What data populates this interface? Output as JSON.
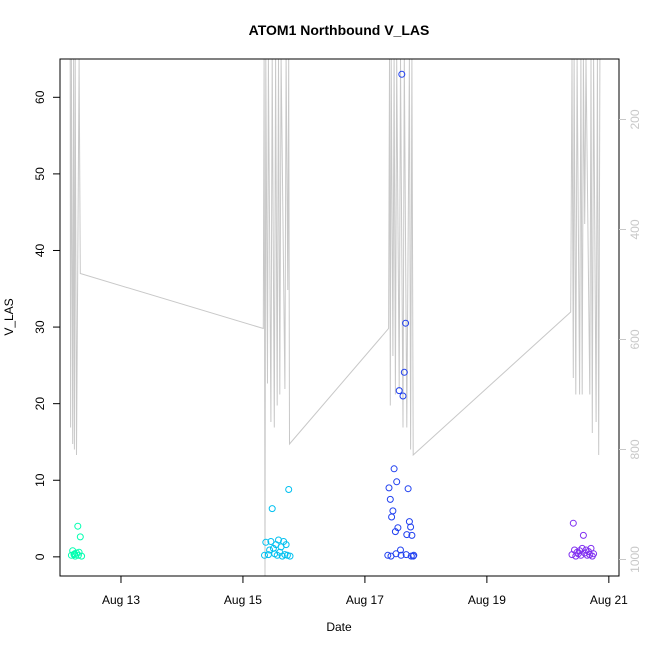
{
  "chart_data": {
    "type": "scatter",
    "title": "ATOM1 Northbound V_LAS",
    "xlabel": "Date",
    "ylabel": "V_LAS",
    "x_ticks": [
      "Aug 13",
      "Aug 15",
      "Aug 17",
      "Aug 19",
      "Aug 21"
    ],
    "y_ticks": [
      "0",
      "10",
      "20",
      "30",
      "40",
      "50",
      "60"
    ],
    "y2_ticks": [
      "200",
      "400",
      "600",
      "800",
      "1000"
    ],
    "xlim": [
      "2012-08-12T00:00",
      "2012-08-21T04:00"
    ],
    "ylim": [
      -2.5,
      65
    ],
    "y2lim": [
      1030,
      90
    ],
    "y2_reversed": true,
    "grid": false,
    "series": [
      {
        "color": "#00ffb0",
        "points": [
          [
            "2012-08-12T04:30",
            0.2
          ],
          [
            "2012-08-12T05:00",
            0.8
          ],
          [
            "2012-08-12T05:30",
            0.3
          ],
          [
            "2012-08-12T06:00",
            0.1
          ],
          [
            "2012-08-12T06:30",
            0.5
          ],
          [
            "2012-08-12T07:00",
            4.0
          ],
          [
            "2012-08-12T07:30",
            0.6
          ],
          [
            "2012-08-12T08:00",
            2.6
          ],
          [
            "2012-08-12T08:30",
            0.1
          ],
          [
            "2012-08-12T05:45",
            0.4
          ],
          [
            "2012-08-12T07:15",
            0.2
          ]
        ]
      },
      {
        "color": "#00c0f0",
        "points": [
          [
            "2012-08-15T08:30",
            0.2
          ],
          [
            "2012-08-15T09:00",
            1.9
          ],
          [
            "2012-08-15T10:00",
            0.3
          ],
          [
            "2012-08-15T10:30",
            0.9
          ],
          [
            "2012-08-15T11:00",
            2.0
          ],
          [
            "2012-08-15T11:30",
            6.3
          ],
          [
            "2012-08-15T12:00",
            1.1
          ],
          [
            "2012-08-15T12:30",
            0.4
          ],
          [
            "2012-08-15T13:00",
            1.6
          ],
          [
            "2012-08-15T13:30",
            0.2
          ],
          [
            "2012-08-15T14:00",
            2.2
          ],
          [
            "2012-08-15T14:30",
            0.6
          ],
          [
            "2012-08-15T15:00",
            1.3
          ],
          [
            "2012-08-15T15:30",
            0.1
          ],
          [
            "2012-08-15T16:00",
            2.0
          ],
          [
            "2012-08-15T16:30",
            0.3
          ],
          [
            "2012-08-15T17:00",
            1.6
          ],
          [
            "2012-08-15T17:30",
            0.2
          ],
          [
            "2012-08-15T18:00",
            8.8
          ],
          [
            "2012-08-15T18:30",
            0.1
          ]
        ]
      },
      {
        "color": "#2040f0",
        "points": [
          [
            "2012-08-17T09:00",
            0.2
          ],
          [
            "2012-08-17T09:30",
            9.0
          ],
          [
            "2012-08-17T10:00",
            7.5
          ],
          [
            "2012-08-17T10:30",
            5.2
          ],
          [
            "2012-08-17T11:00",
            6.0
          ],
          [
            "2012-08-17T11:30",
            11.5
          ],
          [
            "2012-08-17T12:00",
            3.3
          ],
          [
            "2012-08-17T12:30",
            9.8
          ],
          [
            "2012-08-17T13:00",
            3.8
          ],
          [
            "2012-08-17T13:30",
            21.7
          ],
          [
            "2012-08-17T14:00",
            0.9
          ],
          [
            "2012-08-17T14:30",
            63.0
          ],
          [
            "2012-08-17T15:00",
            21.0
          ],
          [
            "2012-08-17T15:30",
            24.1
          ],
          [
            "2012-08-17T16:00",
            30.5
          ],
          [
            "2012-08-17T16:30",
            2.9
          ],
          [
            "2012-08-17T17:00",
            8.9
          ],
          [
            "2012-08-17T17:30",
            4.6
          ],
          [
            "2012-08-17T18:00",
            3.9
          ],
          [
            "2012-08-17T18:30",
            2.8
          ],
          [
            "2012-08-17T19:00",
            0.1
          ],
          [
            "2012-08-17T10:15",
            0.1
          ],
          [
            "2012-08-17T12:15",
            0.4
          ],
          [
            "2012-08-17T14:15",
            0.2
          ],
          [
            "2012-08-17T16:15",
            0.3
          ],
          [
            "2012-08-17T18:15",
            0.1
          ],
          [
            "2012-08-17T19:15",
            0.2
          ]
        ]
      },
      {
        "color": "#8030f0",
        "points": [
          [
            "2012-08-20T09:30",
            0.3
          ],
          [
            "2012-08-20T10:00",
            4.4
          ],
          [
            "2012-08-20T10:30",
            0.9
          ],
          [
            "2012-08-20T11:00",
            0.1
          ],
          [
            "2012-08-20T11:30",
            0.6
          ],
          [
            "2012-08-20T12:00",
            0.4
          ],
          [
            "2012-08-20T12:30",
            0.8
          ],
          [
            "2012-08-20T13:00",
            0.2
          ],
          [
            "2012-08-20T13:30",
            1.1
          ],
          [
            "2012-08-20T14:00",
            2.8
          ],
          [
            "2012-08-20T14:30",
            0.5
          ],
          [
            "2012-08-20T15:00",
            0.9
          ],
          [
            "2012-08-20T15:30",
            0.2
          ],
          [
            "2012-08-20T16:00",
            0.7
          ],
          [
            "2012-08-20T16:30",
            0.3
          ],
          [
            "2012-08-20T17:00",
            1.1
          ],
          [
            "2012-08-20T17:30",
            0.1
          ],
          [
            "2012-08-20T18:00",
            0.4
          ]
        ]
      }
    ],
    "line_series": {
      "color": "#c8c8c8",
      "axis": "right",
      "points": [
        [
          "2012-08-12T04:00",
          90
        ],
        [
          "2012-08-12T04:10",
          760
        ],
        [
          "2012-08-12T04:30",
          90
        ],
        [
          "2012-08-12T05:00",
          790
        ],
        [
          "2012-08-12T05:20",
          90
        ],
        [
          "2012-08-12T05:40",
          800
        ],
        [
          "2012-08-12T06:00",
          90
        ],
        [
          "2012-08-12T06:30",
          810
        ],
        [
          "2012-08-12T07:30",
          90
        ],
        [
          "2012-08-12T08:00",
          480
        ],
        [
          "2012-08-15T08:00",
          580
        ],
        [
          "2012-08-15T08:20",
          90
        ],
        [
          "2012-08-15T08:40",
          1030
        ],
        [
          "2012-08-15T09:00",
          90
        ],
        [
          "2012-08-15T09:40",
          680
        ],
        [
          "2012-08-15T10:00",
          90
        ],
        [
          "2012-08-15T11:00",
          750
        ],
        [
          "2012-08-15T11:30",
          90
        ],
        [
          "2012-08-15T12:20",
          760
        ],
        [
          "2012-08-15T12:50",
          90
        ],
        [
          "2012-08-15T13:30",
          720
        ],
        [
          "2012-08-15T14:00",
          90
        ],
        [
          "2012-08-15T14:30",
          700
        ],
        [
          "2012-08-15T15:00",
          90
        ],
        [
          "2012-08-15T16:30",
          690
        ],
        [
          "2012-08-15T17:00",
          90
        ],
        [
          "2012-08-15T17:40",
          510
        ],
        [
          "2012-08-15T18:00",
          90
        ],
        [
          "2012-08-15T18:20",
          790
        ],
        [
          "2012-08-17T09:20",
          580
        ],
        [
          "2012-08-17T09:40",
          90
        ],
        [
          "2012-08-17T10:00",
          720
        ],
        [
          "2012-08-17T10:20",
          90
        ],
        [
          "2012-08-17T11:00",
          630
        ],
        [
          "2012-08-17T11:30",
          90
        ],
        [
          "2012-08-17T12:00",
          700
        ],
        [
          "2012-08-17T12:30",
          90
        ],
        [
          "2012-08-17T13:30",
          690
        ],
        [
          "2012-08-17T14:00",
          90
        ],
        [
          "2012-08-17T15:00",
          760
        ],
        [
          "2012-08-17T15:30",
          90
        ],
        [
          "2012-08-17T16:30",
          760
        ],
        [
          "2012-08-17T17:30",
          90
        ],
        [
          "2012-08-17T18:00",
          800
        ],
        [
          "2012-08-17T18:30",
          90
        ],
        [
          "2012-08-17T19:00",
          810
        ],
        [
          "2012-08-20T09:00",
          550
        ],
        [
          "2012-08-20T09:30",
          90
        ],
        [
          "2012-08-20T10:00",
          670
        ],
        [
          "2012-08-20T10:20",
          90
        ],
        [
          "2012-08-20T11:00",
          700
        ],
        [
          "2012-08-20T11:30",
          90
        ],
        [
          "2012-08-20T12:30",
          700
        ],
        [
          "2012-08-20T13:00",
          90
        ],
        [
          "2012-08-20T13:30",
          700
        ],
        [
          "2012-08-20T14:00",
          90
        ],
        [
          "2012-08-20T14:30",
          390
        ],
        [
          "2012-08-20T15:00",
          90
        ],
        [
          "2012-08-20T16:30",
          700
        ],
        [
          "2012-08-20T17:00",
          90
        ],
        [
          "2012-08-20T17:30",
          770
        ],
        [
          "2012-08-20T18:00",
          90
        ],
        [
          "2012-08-20T19:00",
          750
        ],
        [
          "2012-08-20T19:30",
          90
        ],
        [
          "2012-08-20T20:00",
          810
        ],
        [
          "2012-08-20T20:30",
          90
        ]
      ]
    }
  }
}
